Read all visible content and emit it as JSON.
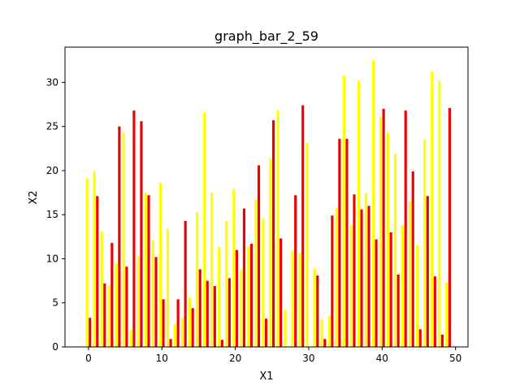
{
  "chart_data": {
    "type": "bar",
    "title": "graph_bar_2_59",
    "xlabel": "X1",
    "ylabel": "X2",
    "xlim": [
      -3.2,
      51.7
    ],
    "ylim": [
      0,
      34
    ],
    "xticks": [
      0,
      10,
      20,
      30,
      40,
      50
    ],
    "yticks": [
      0,
      5,
      10,
      15,
      20,
      25,
      30
    ],
    "grid": false,
    "x": [
      0,
      1,
      2,
      3,
      4,
      5,
      6,
      7,
      8,
      9,
      10,
      11,
      12,
      13,
      14,
      15,
      16,
      17,
      18,
      19,
      20,
      21,
      22,
      23,
      24,
      25,
      26,
      27,
      28,
      29,
      30,
      31,
      32,
      33,
      34,
      35,
      36,
      37,
      38,
      39,
      40,
      41,
      42,
      43,
      44,
      45,
      46,
      47,
      48,
      49
    ],
    "series": [
      {
        "color": "#ffff00",
        "values": [
          19.1,
          19.9,
          13.1,
          6.9,
          9.5,
          24.3,
          1.9,
          10.3,
          17.5,
          12.1,
          18.6,
          13.4,
          2.6,
          3.3,
          5.6,
          15.3,
          26.6,
          17.5,
          11.3,
          14.3,
          17.9,
          8.8,
          11.4,
          16.7,
          14.6,
          21.4,
          26.8,
          4.2,
          10.9,
          10.7,
          23.1,
          8.9,
          3.1,
          3.5,
          15.8,
          30.8,
          13.8,
          30.2,
          17.5,
          32.5,
          26.1,
          24.3,
          21.9,
          13.8,
          16.5,
          11.5,
          23.5,
          31.2,
          30.2,
          7.3
        ]
      },
      {
        "color": "#ee0000",
        "values": [
          3.3,
          17.1,
          7.2,
          11.8,
          25.0,
          9.1,
          26.8,
          25.6,
          17.2,
          10.2,
          5.4,
          0.9,
          5.4,
          14.3,
          4.4,
          8.8,
          7.5,
          6.9,
          0.8,
          7.8,
          11.0,
          15.7,
          11.7,
          20.6,
          3.2,
          25.7,
          12.3,
          0.0,
          17.2,
          27.4,
          0.0,
          8.1,
          0.9,
          14.9,
          23.6,
          23.6,
          17.3,
          15.6,
          16.0,
          12.2,
          27.0,
          13.0,
          8.2,
          26.8,
          19.9,
          2.0,
          17.1,
          8.0,
          1.4,
          27.1
        ]
      }
    ]
  }
}
